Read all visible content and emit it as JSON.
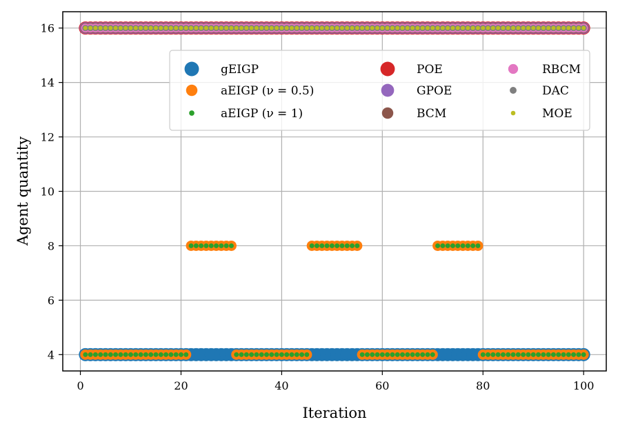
{
  "chart_data": {
    "type": "scatter",
    "title": "",
    "xlabel": "Iteration",
    "ylabel": "Agent quantity",
    "xlim": [
      -3.5,
      104.5
    ],
    "ylim": [
      3.4,
      16.6
    ],
    "xticks": [
      0,
      20,
      40,
      60,
      80,
      100
    ],
    "yticks": [
      4,
      6,
      8,
      10,
      12,
      14,
      16
    ],
    "grid": true,
    "legend_position": "top-right",
    "x": {
      "start": 1,
      "end": 100
    },
    "series": [
      {
        "name": "gEIGP",
        "color": "#1f77b4",
        "size": 9.5,
        "segments": [
          {
            "from": 1,
            "to": 100,
            "y": 4
          }
        ]
      },
      {
        "name": "aEIGP (ν = 0.5)",
        "color": "#ff7f0e",
        "size": 7.5,
        "segments": [
          {
            "from": 1,
            "to": 21,
            "y": 4
          },
          {
            "from": 22,
            "to": 30,
            "y": 8
          },
          {
            "from": 31,
            "to": 45,
            "y": 4
          },
          {
            "from": 46,
            "to": 55,
            "y": 8
          },
          {
            "from": 56,
            "to": 70,
            "y": 4
          },
          {
            "from": 71,
            "to": 79,
            "y": 8
          },
          {
            "from": 80,
            "to": 100,
            "y": 4
          }
        ]
      },
      {
        "name": "aEIGP (ν = 1)",
        "color": "#2ca02c",
        "size": 3.5,
        "segments": [
          {
            "from": 1,
            "to": 21,
            "y": 4
          },
          {
            "from": 22,
            "to": 30,
            "y": 8
          },
          {
            "from": 31,
            "to": 45,
            "y": 4
          },
          {
            "from": 46,
            "to": 55,
            "y": 8
          },
          {
            "from": 56,
            "to": 70,
            "y": 4
          },
          {
            "from": 71,
            "to": 79,
            "y": 8
          },
          {
            "from": 80,
            "to": 100,
            "y": 4
          }
        ]
      },
      {
        "name": "POE",
        "color": "#d62728",
        "size": 9.5,
        "segments": [
          {
            "from": 1,
            "to": 100,
            "y": 16
          }
        ]
      },
      {
        "name": "GPOE",
        "color": "#9467bd",
        "size": 8.5,
        "segments": [
          {
            "from": 1,
            "to": 100,
            "y": 16
          }
        ]
      },
      {
        "name": "BCM",
        "color": "#8c564b",
        "size": 7.5,
        "segments": [
          {
            "from": 1,
            "to": 100,
            "y": 16
          }
        ]
      },
      {
        "name": "RBCM",
        "color": "#e377c2",
        "size": 6.5,
        "segments": [
          {
            "from": 1,
            "to": 100,
            "y": 16
          }
        ]
      },
      {
        "name": "DAC",
        "color": "#7f7f7f",
        "size": 4.5,
        "segments": [
          {
            "from": 1,
            "to": 100,
            "y": 16
          }
        ]
      },
      {
        "name": "MOE",
        "color": "#bcbd22",
        "size": 3,
        "segments": [
          {
            "from": 1,
            "to": 100,
            "y": 16
          }
        ]
      }
    ]
  }
}
